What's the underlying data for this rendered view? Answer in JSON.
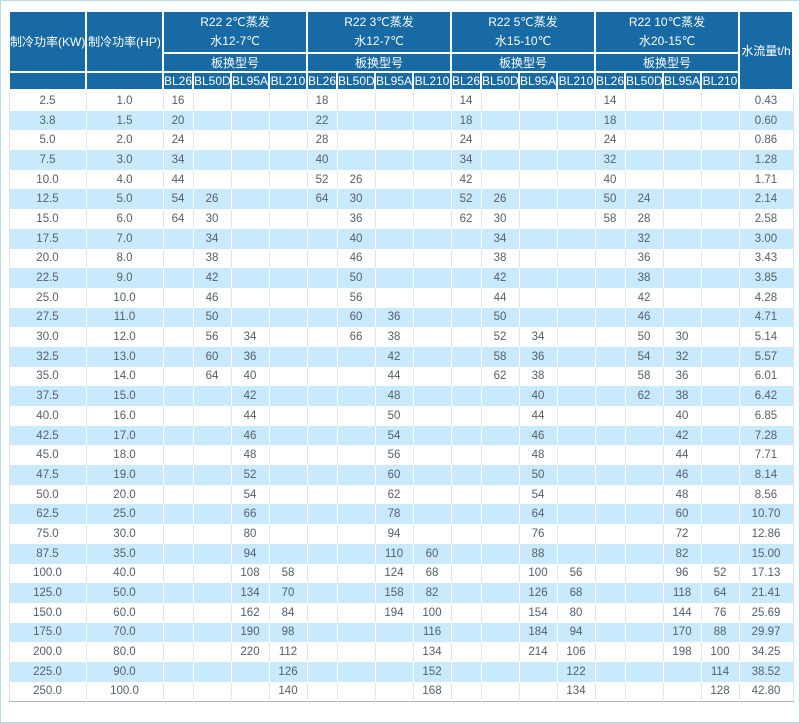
{
  "colors": {
    "header_bg": "#176aa3",
    "header_text": "#ffffff",
    "stripe_bg": "#c9eafd",
    "text": "#55606a",
    "page_border": "#b7d8ee"
  },
  "table": {
    "col_headers": {
      "kw": "制冷功率(KW)",
      "hp": "制冷功率(HP)",
      "flow": "水流量t/h"
    },
    "groups": [
      {
        "title": "R22 2℃蒸发",
        "subtitle": "水12-7℃",
        "model_label": "板换型号",
        "models": [
          "BL26",
          "BL50D",
          "BL95A",
          "BL210"
        ]
      },
      {
        "title": "R22 3℃蒸发",
        "subtitle": "水12-7℃",
        "model_label": "板换型号",
        "models": [
          "BL26",
          "BL50D",
          "BL95A",
          "BL210"
        ]
      },
      {
        "title": "R22 5℃蒸发",
        "subtitle": "水15-10℃",
        "model_label": "板换型号",
        "models": [
          "BL26",
          "BL50D",
          "BL95A",
          "BL210"
        ]
      },
      {
        "title": "R22 10℃蒸发",
        "subtitle": "水20-15℃",
        "model_label": "板换型号",
        "models": [
          "BL26",
          "BL50D",
          "BL95A",
          "BL210"
        ]
      }
    ],
    "rows": [
      {
        "kw": "2.5",
        "hp": "1.0",
        "m": [
          "16",
          "",
          "",
          "",
          "18",
          "",
          "",
          "",
          "14",
          "",
          "",
          "",
          "14",
          "",
          "",
          ""
        ],
        "flow": "0.43"
      },
      {
        "kw": "3.8",
        "hp": "1.5",
        "m": [
          "20",
          "",
          "",
          "",
          "22",
          "",
          "",
          "",
          "18",
          "",
          "",
          "",
          "18",
          "",
          "",
          ""
        ],
        "flow": "0.60"
      },
      {
        "kw": "5.0",
        "hp": "2.0",
        "m": [
          "24",
          "",
          "",
          "",
          "28",
          "",
          "",
          "",
          "24",
          "",
          "",
          "",
          "24",
          "",
          "",
          ""
        ],
        "flow": "0.86"
      },
      {
        "kw": "7.5",
        "hp": "3.0",
        "m": [
          "34",
          "",
          "",
          "",
          "40",
          "",
          "",
          "",
          "34",
          "",
          "",
          "",
          "32",
          "",
          "",
          ""
        ],
        "flow": "1.28"
      },
      {
        "kw": "10.0",
        "hp": "4.0",
        "m": [
          "44",
          "",
          "",
          "",
          "52",
          "26",
          "",
          "",
          "42",
          "",
          "",
          "",
          "40",
          "",
          "",
          ""
        ],
        "flow": "1.71"
      },
      {
        "kw": "12.5",
        "hp": "5.0",
        "m": [
          "54",
          "26",
          "",
          "",
          "64",
          "30",
          "",
          "",
          "52",
          "26",
          "",
          "",
          "50",
          "24",
          "",
          ""
        ],
        "flow": "2.14"
      },
      {
        "kw": "15.0",
        "hp": "6.0",
        "m": [
          "64",
          "30",
          "",
          "",
          "",
          "36",
          "",
          "",
          "62",
          "30",
          "",
          "",
          "58",
          "28",
          "",
          ""
        ],
        "flow": "2.58"
      },
      {
        "kw": "17.5",
        "hp": "7.0",
        "m": [
          "",
          "34",
          "",
          "",
          "",
          "40",
          "",
          "",
          "",
          "34",
          "",
          "",
          "",
          "32",
          "",
          ""
        ],
        "flow": "3.00"
      },
      {
        "kw": "20.0",
        "hp": "8.0",
        "m": [
          "",
          "38",
          "",
          "",
          "",
          "46",
          "",
          "",
          "",
          "38",
          "",
          "",
          "",
          "36",
          "",
          ""
        ],
        "flow": "3.43"
      },
      {
        "kw": "22.5",
        "hp": "9.0",
        "m": [
          "",
          "42",
          "",
          "",
          "",
          "50",
          "",
          "",
          "",
          "42",
          "",
          "",
          "",
          "38",
          "",
          ""
        ],
        "flow": "3.85"
      },
      {
        "kw": "25.0",
        "hp": "10.0",
        "m": [
          "",
          "46",
          "",
          "",
          "",
          "56",
          "",
          "",
          "",
          "44",
          "",
          "",
          "",
          "42",
          "",
          ""
        ],
        "flow": "4.28"
      },
      {
        "kw": "27.5",
        "hp": "11.0",
        "m": [
          "",
          "50",
          "",
          "",
          "",
          "60",
          "36",
          "",
          "",
          "50",
          "",
          "",
          "",
          "46",
          "",
          ""
        ],
        "flow": "4.71"
      },
      {
        "kw": "30.0",
        "hp": "12.0",
        "m": [
          "",
          "56",
          "34",
          "",
          "",
          "66",
          "38",
          "",
          "",
          "52",
          "34",
          "",
          "",
          "50",
          "30",
          ""
        ],
        "flow": "5.14"
      },
      {
        "kw": "32.5",
        "hp": "13.0",
        "m": [
          "",
          "60",
          "36",
          "",
          "",
          "",
          "42",
          "",
          "",
          "58",
          "36",
          "",
          "",
          "54",
          "32",
          ""
        ],
        "flow": "5.57"
      },
      {
        "kw": "35.0",
        "hp": "14.0",
        "m": [
          "",
          "64",
          "40",
          "",
          "",
          "",
          "44",
          "",
          "",
          "62",
          "38",
          "",
          "",
          "58",
          "36",
          ""
        ],
        "flow": "6.01"
      },
      {
        "kw": "37.5",
        "hp": "15.0",
        "m": [
          "",
          "",
          "42",
          "",
          "",
          "",
          "48",
          "",
          "",
          "",
          "40",
          "",
          "",
          "62",
          "38",
          ""
        ],
        "flow": "6.42"
      },
      {
        "kw": "40.0",
        "hp": "16.0",
        "m": [
          "",
          "",
          "44",
          "",
          "",
          "",
          "50",
          "",
          "",
          "",
          "44",
          "",
          "",
          "",
          "40",
          ""
        ],
        "flow": "6.85"
      },
      {
        "kw": "42.5",
        "hp": "17.0",
        "m": [
          "",
          "",
          "46",
          "",
          "",
          "",
          "54",
          "",
          "",
          "",
          "46",
          "",
          "",
          "",
          "42",
          ""
        ],
        "flow": "7.28"
      },
      {
        "kw": "45.0",
        "hp": "18.0",
        "m": [
          "",
          "",
          "48",
          "",
          "",
          "",
          "56",
          "",
          "",
          "",
          "48",
          "",
          "",
          "",
          "44",
          ""
        ],
        "flow": "7.71"
      },
      {
        "kw": "47.5",
        "hp": "19.0",
        "m": [
          "",
          "",
          "52",
          "",
          "",
          "",
          "60",
          "",
          "",
          "",
          "50",
          "",
          "",
          "",
          "46",
          ""
        ],
        "flow": "8.14"
      },
      {
        "kw": "50.0",
        "hp": "20.0",
        "m": [
          "",
          "",
          "54",
          "",
          "",
          "",
          "62",
          "",
          "",
          "",
          "54",
          "",
          "",
          "",
          "48",
          ""
        ],
        "flow": "8.56"
      },
      {
        "kw": "62.5",
        "hp": "25.0",
        "m": [
          "",
          "",
          "66",
          "",
          "",
          "",
          "78",
          "",
          "",
          "",
          "64",
          "",
          "",
          "",
          "60",
          ""
        ],
        "flow": "10.70"
      },
      {
        "kw": "75.0",
        "hp": "30.0",
        "m": [
          "",
          "",
          "80",
          "",
          "",
          "",
          "94",
          "",
          "",
          "",
          "76",
          "",
          "",
          "",
          "72",
          ""
        ],
        "flow": "12.86"
      },
      {
        "kw": "87.5",
        "hp": "35.0",
        "m": [
          "",
          "",
          "94",
          "",
          "",
          "",
          "110",
          "60",
          "",
          "",
          "88",
          "",
          "",
          "",
          "82",
          ""
        ],
        "flow": "15.00"
      },
      {
        "kw": "100.0",
        "hp": "40.0",
        "m": [
          "",
          "",
          "108",
          "58",
          "",
          "",
          "124",
          "68",
          "",
          "",
          "100",
          "56",
          "",
          "",
          "96",
          "52"
        ],
        "flow": "17.13"
      },
      {
        "kw": "125.0",
        "hp": "50.0",
        "m": [
          "",
          "",
          "134",
          "70",
          "",
          "",
          "158",
          "82",
          "",
          "",
          "126",
          "68",
          "",
          "",
          "118",
          "64"
        ],
        "flow": "21.41"
      },
      {
        "kw": "150.0",
        "hp": "60.0",
        "m": [
          "",
          "",
          "162",
          "84",
          "",
          "",
          "194",
          "100",
          "",
          "",
          "154",
          "80",
          "",
          "",
          "144",
          "76"
        ],
        "flow": "25.69"
      },
      {
        "kw": "175.0",
        "hp": "70.0",
        "m": [
          "",
          "",
          "190",
          "98",
          "",
          "",
          "",
          "116",
          "",
          "",
          "184",
          "94",
          "",
          "",
          "170",
          "88"
        ],
        "flow": "29.97"
      },
      {
        "kw": "200.0",
        "hp": "80.0",
        "m": [
          "",
          "",
          "220",
          "112",
          "",
          "",
          "",
          "134",
          "",
          "",
          "214",
          "106",
          "",
          "",
          "198",
          "100"
        ],
        "flow": "34.25"
      },
      {
        "kw": "225.0",
        "hp": "90.0",
        "m": [
          "",
          "",
          "",
          "126",
          "",
          "",
          "",
          "152",
          "",
          "",
          "",
          "122",
          "",
          "",
          "",
          "114"
        ],
        "flow": "38.52"
      },
      {
        "kw": "250.0",
        "hp": "100.0",
        "m": [
          "",
          "",
          "",
          "140",
          "",
          "",
          "",
          "168",
          "",
          "",
          "",
          "134",
          "",
          "",
          "",
          "128"
        ],
        "flow": "42.80"
      }
    ]
  }
}
